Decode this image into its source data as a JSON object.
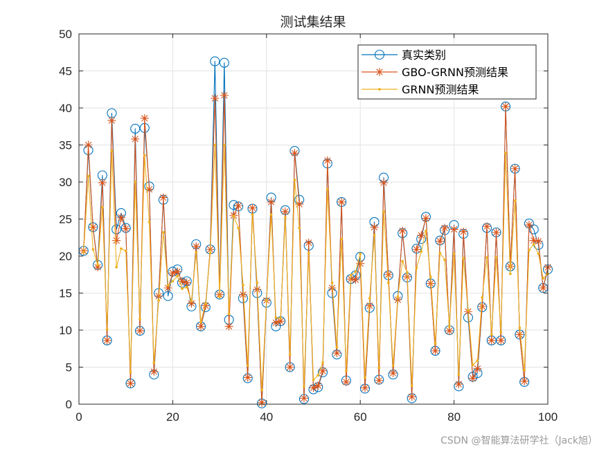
{
  "chart_data": {
    "type": "line",
    "title": "测试集结果",
    "xlabel": "",
    "ylabel": "",
    "xlim": [
      0,
      100
    ],
    "ylim": [
      0,
      50
    ],
    "xticks": [
      0,
      20,
      40,
      60,
      80,
      100
    ],
    "yticks": [
      0,
      5,
      10,
      15,
      20,
      25,
      30,
      35,
      40,
      45,
      50
    ],
    "grid": true,
    "legend_position": "top-right",
    "series": [
      {
        "name": "真实类别",
        "color": "#0072BD",
        "marker": "circle",
        "values": [
          20.7,
          34.3,
          23.9,
          18.8,
          30.9,
          8.6,
          39.3,
          23.6,
          25.8,
          23.8,
          2.8,
          37.2,
          9.9,
          37.3,
          29.4,
          4.0,
          15.0,
          27.6,
          14.6,
          17.9,
          18.2,
          16.4,
          16.6,
          13.2,
          21.6,
          10.5,
          13.1,
          20.9,
          46.3,
          14.8,
          46.1,
          11.4,
          26.9,
          26.7,
          14.3,
          3.5,
          26.4,
          15.0,
          0.1,
          13.7,
          27.9,
          10.5,
          11.2,
          26.2,
          5.0,
          34.2,
          27.6,
          0.7,
          21.4,
          2.0,
          2.3,
          4.3,
          32.5,
          15.0,
          6.7,
          27.3,
          3.2,
          16.9,
          17.4,
          19.9,
          2.1,
          13.0,
          24.6,
          3.3,
          30.6,
          17.4,
          4.0,
          14.6,
          23.1,
          17.1,
          0.8,
          21.0,
          22.3,
          25.3,
          16.3,
          7.2,
          22.1,
          23.5,
          10.0,
          24.2,
          2.4,
          23.0,
          11.7,
          3.7,
          4.2,
          13.1,
          23.8,
          8.6,
          23.2,
          8.6,
          40.2,
          18.6,
          31.8,
          9.4,
          3.0,
          24.4,
          23.6,
          21.5,
          15.7,
          18.2
        ]
      },
      {
        "name": "GBO-GRNN预测结果",
        "color": "#D95319",
        "marker": "asterisk",
        "values": [
          20.7,
          35.0,
          23.9,
          18.5,
          29.9,
          8.6,
          38.3,
          22.1,
          25.2,
          23.7,
          2.8,
          35.8,
          9.9,
          38.6,
          29.0,
          4.4,
          14.6,
          27.9,
          15.7,
          17.7,
          17.9,
          16.6,
          16.4,
          13.6,
          21.3,
          10.5,
          13.3,
          20.9,
          41.3,
          14.8,
          41.7,
          10.5,
          25.5,
          26.8,
          14.8,
          3.6,
          26.5,
          15.5,
          0.2,
          14.0,
          27.3,
          11.0,
          11.2,
          26.0,
          5.0,
          33.9,
          27.0,
          0.8,
          21.8,
          2.2,
          2.5,
          4.5,
          32.9,
          15.7,
          6.9,
          27.3,
          3.0,
          16.9,
          16.8,
          19.0,
          2.2,
          13.3,
          23.9,
          3.2,
          29.9,
          17.5,
          4.2,
          14.1,
          23.4,
          17.2,
          1.0,
          20.9,
          22.8,
          25.1,
          16.3,
          7.2,
          22.0,
          23.8,
          9.9,
          23.6,
          2.7,
          23.3,
          12.5,
          3.5,
          4.8,
          13.2,
          24.0,
          8.6,
          23.2,
          8.6,
          40.2,
          18.6,
          31.8,
          9.4,
          3.1,
          24.2,
          22.1,
          22.0,
          15.7,
          18.5
        ]
      },
      {
        "name": "GRNN预测结果",
        "color": "#EDB120",
        "marker": "point",
        "values": [
          20.5,
          30.8,
          20.9,
          18.8,
          26.6,
          10.1,
          34.2,
          18.5,
          21.0,
          20.7,
          4.3,
          30.0,
          11.5,
          33.6,
          24.6,
          5.6,
          14.0,
          23.2,
          16.0,
          16.6,
          17.3,
          15.6,
          15.8,
          13.9,
          20.5,
          11.1,
          13.6,
          20.4,
          35.0,
          14.5,
          35.0,
          12.2,
          25.4,
          23.8,
          16.1,
          5.2,
          25.6,
          16.4,
          1.9,
          14.0,
          25.6,
          11.7,
          11.6,
          25.2,
          6.7,
          30.3,
          23.8,
          2.4,
          20.4,
          3.3,
          3.9,
          5.6,
          29.0,
          16.4,
          7.7,
          22.3,
          4.5,
          17.4,
          17.9,
          20.3,
          3.6,
          14.3,
          22.8,
          4.9,
          26.0,
          16.4,
          5.2,
          14.5,
          19.3,
          17.8,
          2.5,
          18.4,
          20.6,
          23.4,
          17.2,
          8.2,
          20.4,
          19.5,
          10.5,
          20.3,
          4.0,
          19.7,
          12.7,
          5.3,
          5.9,
          14.4,
          19.8,
          9.4,
          19.8,
          9.7,
          33.9,
          17.6,
          27.5,
          10.3,
          4.6,
          20.8,
          21.6,
          20.3,
          17.0,
          17.6
        ]
      }
    ]
  },
  "watermark": "CSDN @智能算法研学社（Jack旭）"
}
